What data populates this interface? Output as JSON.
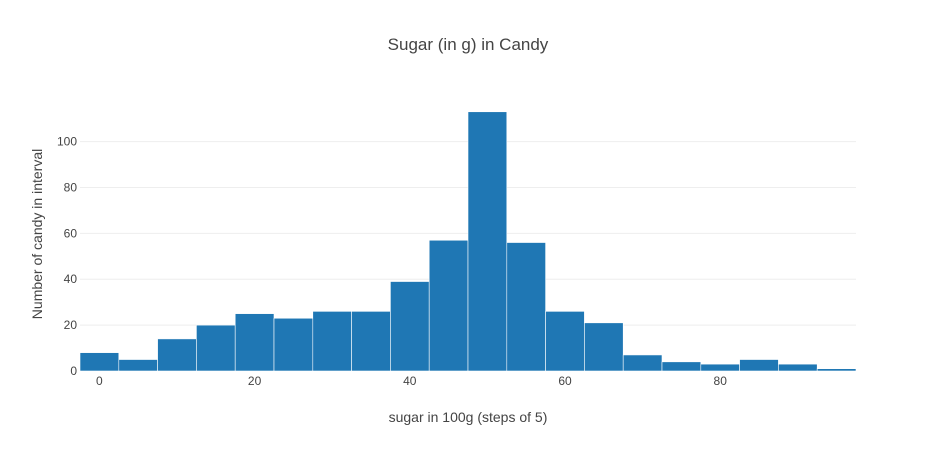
{
  "chart_data": {
    "type": "bar",
    "title": "Sugar (in g) in Candy",
    "xlabel": "sugar in 100g (steps of 5)",
    "ylabel": "Number of candy in interval",
    "bin_size": 5,
    "bins_start": [
      -2.5,
      2.5,
      7.5,
      12.5,
      17.5,
      22.5,
      27.5,
      32.5,
      37.5,
      42.5,
      47.5,
      52.5,
      57.5,
      62.5,
      67.5,
      72.5,
      77.5,
      82.5,
      87.5,
      92.5
    ],
    "values": [
      8,
      5,
      14,
      20,
      25,
      23,
      26,
      26,
      39,
      57,
      113,
      56,
      26,
      21,
      7,
      4,
      3,
      5,
      3,
      1
    ],
    "xlim": [
      -2.5,
      97.5
    ],
    "ylim": [
      0,
      119
    ],
    "xticks": [
      0,
      20,
      40,
      60,
      80
    ],
    "yticks": [
      0,
      20,
      40,
      60,
      80,
      100
    ],
    "grid": true,
    "bar_color": "#1f77b4"
  }
}
